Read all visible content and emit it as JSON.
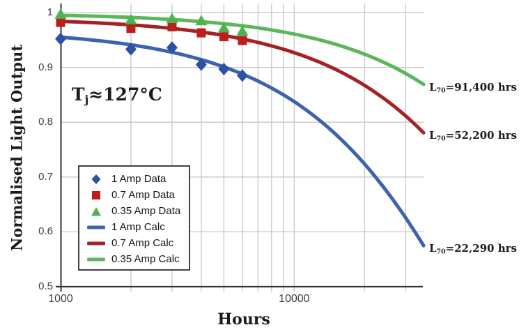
{
  "annotations": {
    "temperature": {
      "prefix": "T",
      "subscript": "j",
      "rest": "≈127°C"
    }
  },
  "chart_data": {
    "type": "line",
    "title": "",
    "xlabel": "Hours",
    "ylabel": "Normalised Light Output",
    "x_scale": "log",
    "xlim": [
      1000,
      35800
    ],
    "ylim": [
      0.5,
      1.016
    ],
    "grid": true,
    "x_ticks": [
      {
        "value": 1000,
        "label": "1000"
      },
      {
        "value": 10000,
        "label": "10000"
      }
    ],
    "x_gridlines": [
      2000,
      3000,
      4000,
      5000,
      6000,
      7000,
      8000,
      9000,
      10000,
      20000,
      30000
    ],
    "y_ticks": [
      {
        "value": 1.0,
        "label": "1"
      },
      {
        "value": 0.9,
        "label": "0.9"
      },
      {
        "value": 0.8,
        "label": "0.8"
      },
      {
        "value": 0.7,
        "label": "0.7"
      },
      {
        "value": 0.6,
        "label": "0.6"
      },
      {
        "value": 0.5,
        "label": "0.5"
      }
    ],
    "y_gridlines": [
      1.0,
      0.9,
      0.8,
      0.7,
      0.6
    ],
    "series": [
      {
        "name": "1 Amp Data",
        "kind": "scatter",
        "marker": "diamond",
        "color": "#2c51a5",
        "x": [
          1000,
          2000,
          3000,
          4000,
          5000,
          6000
        ],
        "y": [
          0.952,
          0.933,
          0.936,
          0.905,
          0.897,
          0.885
        ]
      },
      {
        "name": "0.7 Amp Data",
        "kind": "scatter",
        "marker": "square",
        "color": "#bc1d1f",
        "x": [
          1000,
          2000,
          3000,
          4000,
          5000,
          6000
        ],
        "y": [
          0.982,
          0.971,
          0.974,
          0.963,
          0.956,
          0.949
        ]
      },
      {
        "name": "0.35 Amp Data",
        "kind": "scatter",
        "marker": "triangle",
        "color": "#4eb34f",
        "x": [
          1000,
          2000,
          3000,
          4000,
          5000,
          6000
        ],
        "y": [
          0.997,
          0.987,
          0.989,
          0.985,
          0.972,
          0.966
        ]
      },
      {
        "name": "1 Amp Calc",
        "kind": "curve",
        "color": "#3c63ae",
        "start_hours": 1000,
        "start_value": 0.955,
        "l70_hours": 22290
      },
      {
        "name": "0.7 Amp Calc",
        "kind": "curve",
        "color": "#a42226",
        "start_hours": 1000,
        "start_value": 0.984,
        "l70_hours": 52200
      },
      {
        "name": "0.35 Amp Calc",
        "kind": "curve",
        "color": "#5cb75c",
        "start_hours": 1000,
        "start_value": 0.995,
        "l70_hours": 91400
      }
    ],
    "l70_annotations": [
      {
        "series": "0.35 Amp Calc",
        "prefix": "L",
        "subscript": "70",
        "text": "=91,400 hrs"
      },
      {
        "series": "0.7 Amp Calc",
        "prefix": "L",
        "subscript": "70",
        "text": "=52,200 hrs"
      },
      {
        "series": "1 Amp Calc",
        "prefix": "L",
        "subscript": "70",
        "text": "=22,290 hrs"
      }
    ],
    "legend": {
      "position": "lower-left"
    },
    "colors": {
      "grid": "#c7c7c7",
      "axis": "#333333",
      "tick_text": "#3d3d3d",
      "label_text": "#1b1b1b"
    }
  }
}
